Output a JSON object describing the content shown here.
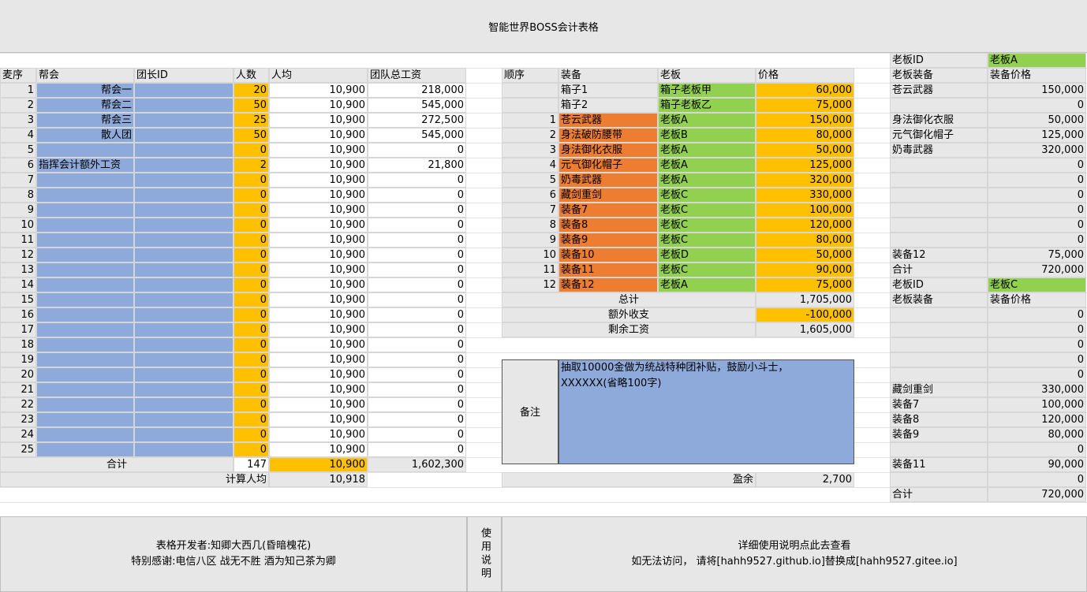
{
  "title": "智能世界BOSS会计表格",
  "guild_table": {
    "headers": [
      "麦序",
      "帮会",
      "团长ID",
      "人数",
      "人均",
      "团队总工资"
    ],
    "rows": [
      {
        "idx": "1",
        "guild": "帮会一",
        "count": "20",
        "avg": "10,900",
        "total": "218,000"
      },
      {
        "idx": "2",
        "guild": "帮会二",
        "count": "50",
        "avg": "10,900",
        "total": "545,000"
      },
      {
        "idx": "3",
        "guild": "帮会三",
        "count": "25",
        "avg": "10,900",
        "total": "272,500"
      },
      {
        "idx": "4",
        "guild": "散人团",
        "count": "50",
        "avg": "10,900",
        "total": "545,000"
      },
      {
        "idx": "5",
        "guild": "",
        "count": "0",
        "avg": "10,900",
        "total": "0"
      },
      {
        "idx": "6",
        "guild": "指挥会计额外工资",
        "count": "2",
        "avg": "10,900",
        "total": "21,800"
      },
      {
        "idx": "7",
        "guild": "",
        "count": "0",
        "avg": "10,900",
        "total": "0"
      },
      {
        "idx": "8",
        "guild": "",
        "count": "0",
        "avg": "10,900",
        "total": "0"
      },
      {
        "idx": "9",
        "guild": "",
        "count": "0",
        "avg": "10,900",
        "total": "0"
      },
      {
        "idx": "10",
        "guild": "",
        "count": "0",
        "avg": "10,900",
        "total": "0"
      },
      {
        "idx": "11",
        "guild": "",
        "count": "0",
        "avg": "10,900",
        "total": "0"
      },
      {
        "idx": "12",
        "guild": "",
        "count": "0",
        "avg": "10,900",
        "total": "0"
      },
      {
        "idx": "13",
        "guild": "",
        "count": "0",
        "avg": "10,900",
        "total": "0"
      },
      {
        "idx": "14",
        "guild": "",
        "count": "0",
        "avg": "10,900",
        "total": "0"
      },
      {
        "idx": "15",
        "guild": "",
        "count": "0",
        "avg": "10,900",
        "total": "0"
      },
      {
        "idx": "16",
        "guild": "",
        "count": "0",
        "avg": "10,900",
        "total": "0"
      },
      {
        "idx": "17",
        "guild": "",
        "count": "0",
        "avg": "10,900",
        "total": "0"
      },
      {
        "idx": "18",
        "guild": "",
        "count": "0",
        "avg": "10,900",
        "total": "0"
      },
      {
        "idx": "19",
        "guild": "",
        "count": "0",
        "avg": "10,900",
        "total": "0"
      },
      {
        "idx": "20",
        "guild": "",
        "count": "0",
        "avg": "10,900",
        "total": "0"
      },
      {
        "idx": "21",
        "guild": "",
        "count": "0",
        "avg": "10,900",
        "total": "0"
      },
      {
        "idx": "22",
        "guild": "",
        "count": "0",
        "avg": "10,900",
        "total": "0"
      },
      {
        "idx": "23",
        "guild": "",
        "count": "0",
        "avg": "10,900",
        "total": "0"
      },
      {
        "idx": "24",
        "guild": "",
        "count": "0",
        "avg": "10,900",
        "total": "0"
      },
      {
        "idx": "25",
        "guild": "",
        "count": "0",
        "avg": "10,900",
        "total": "0"
      }
    ],
    "sum_label": "合计",
    "sum_count": "147",
    "sum_avg": "10,900",
    "sum_total": "1,602,300",
    "calc_label": "计算人均",
    "calc_value": "10,918"
  },
  "equip_table": {
    "headers": [
      "顺序",
      "装备",
      "老板",
      "价格"
    ],
    "box_rows": [
      {
        "idx": "",
        "item": "箱子1",
        "boss": "箱子老板甲",
        "price": "60,000"
      },
      {
        "idx": "",
        "item": "箱子2",
        "boss": "箱子老板乙",
        "price": "75,000"
      }
    ],
    "rows": [
      {
        "idx": "1",
        "item": "苍云武器",
        "boss": "老板A",
        "price": "150,000"
      },
      {
        "idx": "2",
        "item": "身法破防腰带",
        "boss": "老板B",
        "price": "80,000"
      },
      {
        "idx": "3",
        "item": "身法御化衣服",
        "boss": "老板A",
        "price": "50,000"
      },
      {
        "idx": "4",
        "item": "元气御化帽子",
        "boss": "老板A",
        "price": "125,000"
      },
      {
        "idx": "5",
        "item": "奶毒武器",
        "boss": "老板A",
        "price": "320,000"
      },
      {
        "idx": "6",
        "item": "藏剑重剑",
        "boss": "老板C",
        "price": "330,000"
      },
      {
        "idx": "7",
        "item": "装备7",
        "boss": "老板C",
        "price": "100,000"
      },
      {
        "idx": "8",
        "item": "装备8",
        "boss": "老板C",
        "price": "120,000"
      },
      {
        "idx": "9",
        "item": "装备9",
        "boss": "老板C",
        "price": "80,000"
      },
      {
        "idx": "10",
        "item": "装备10",
        "boss": "老板D",
        "price": "50,000"
      },
      {
        "idx": "11",
        "item": "装备11",
        "boss": "老板C",
        "price": "90,000"
      },
      {
        "idx": "12",
        "item": "装备12",
        "boss": "老板A",
        "price": "75,000"
      }
    ],
    "total_label": "总计",
    "total_value": "1,705,000",
    "extra_label": "额外收支",
    "extra_value": "-100,000",
    "remain_label": "剩余工资",
    "remain_value": "1,605,000",
    "note_label": "备注",
    "note_line1": "抽取10000金做为统战特种团补贴，鼓励小斗士，",
    "note_line2": "XXXXXX(省略100字)",
    "surplus_label": "盈余",
    "surplus_value": "2,700"
  },
  "boss_panel": {
    "a_id_label": "老板ID",
    "a_id_value": "老板A",
    "col_item": "老板装备",
    "col_price": "装备价格",
    "a_rows": [
      {
        "item": "苍云武器",
        "price": "150,000"
      },
      {
        "item": "",
        "price": "0"
      },
      {
        "item": "身法御化衣服",
        "price": "50,000"
      },
      {
        "item": "元气御化帽子",
        "price": "125,000"
      },
      {
        "item": "奶毒武器",
        "price": "320,000"
      },
      {
        "item": "",
        "price": "0"
      },
      {
        "item": "",
        "price": "0"
      },
      {
        "item": "",
        "price": "0"
      },
      {
        "item": "",
        "price": "0"
      },
      {
        "item": "",
        "price": "0"
      },
      {
        "item": "",
        "price": "0"
      },
      {
        "item": "装备12",
        "price": "75,000"
      }
    ],
    "a_sum_label": "合计",
    "a_sum_value": "720,000",
    "c_id_label": "老板ID",
    "c_id_value": "老板C",
    "c_rows": [
      {
        "item": "",
        "price": "0"
      },
      {
        "item": "",
        "price": "0"
      },
      {
        "item": "",
        "price": "0"
      },
      {
        "item": "",
        "price": "0"
      },
      {
        "item": "",
        "price": "0"
      },
      {
        "item": "藏剑重剑",
        "price": "330,000"
      },
      {
        "item": "装备7",
        "price": "100,000"
      },
      {
        "item": "装备8",
        "price": "120,000"
      },
      {
        "item": "装备9",
        "price": "80,000"
      },
      {
        "item": "",
        "price": "0"
      },
      {
        "item": "装备11",
        "price": "90,000"
      },
      {
        "item": "",
        "price": "0"
      }
    ],
    "c_sum_label": "合计",
    "c_sum_value": "720,000"
  },
  "footer": {
    "dev_line1": "表格开发者:知卿大西几(昏暗槐花)",
    "dev_line2": "特别感谢:电信八区 战无不胜 酒为知己茶为卿",
    "usage_label": "使用说明",
    "link_line1": "详细使用说明点此去查看",
    "link_line2": "如无法访问， 请将[hahh9527.github.io]替换成[hahh9527.gitee.io]"
  },
  "colors": {
    "gray": "#e7e7e7",
    "blue": "#8eaadb",
    "yellow": "#ffc000",
    "orange": "#ed7d31",
    "green": "#92d050"
  }
}
